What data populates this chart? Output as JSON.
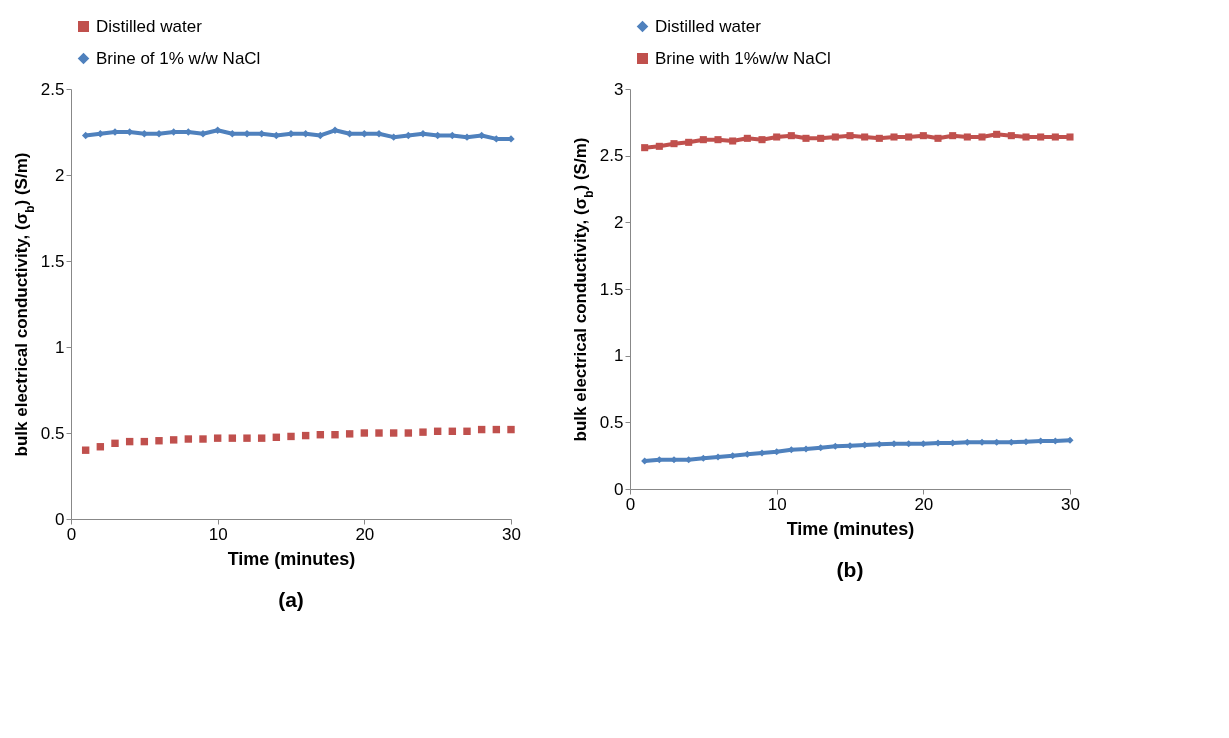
{
  "chart_data": [
    {
      "type": "line",
      "title": "(a)",
      "xlabel": "Time (minutes)",
      "ylabel": "bulk electrical conductivity, (σ$_{b}$) (S/m)",
      "legend": "top",
      "xlim": [
        0,
        30
      ],
      "xticks": [
        0,
        10,
        20,
        30
      ],
      "ylim": [
        0,
        2.5
      ],
      "yticks": [
        0,
        0.5,
        1,
        1.5,
        2,
        2.5
      ],
      "x": [
        1,
        2,
        3,
        4,
        5,
        6,
        7,
        8,
        9,
        10,
        11,
        12,
        13,
        14,
        15,
        16,
        17,
        18,
        19,
        20,
        21,
        22,
        23,
        24,
        25,
        26,
        27,
        28,
        29,
        30
      ],
      "series": [
        {
          "name": "Distilled water",
          "type": "scatter",
          "marker": "square",
          "color": "#c0504d",
          "values": [
            0.4,
            0.42,
            0.44,
            0.45,
            0.45,
            0.455,
            0.46,
            0.465,
            0.465,
            0.47,
            0.47,
            0.47,
            0.47,
            0.475,
            0.48,
            0.485,
            0.49,
            0.49,
            0.495,
            0.5,
            0.5,
            0.5,
            0.5,
            0.505,
            0.51,
            0.51,
            0.51,
            0.52,
            0.52,
            0.52
          ]
        },
        {
          "name": "Brine of 1% w/w NaCl",
          "type": "line",
          "marker": "diamond",
          "color": "#4f81bd",
          "values": [
            2.23,
            2.24,
            2.25,
            2.25,
            2.24,
            2.24,
            2.25,
            2.25,
            2.24,
            2.26,
            2.24,
            2.24,
            2.24,
            2.23,
            2.24,
            2.24,
            2.23,
            2.26,
            2.24,
            2.24,
            2.24,
            2.22,
            2.23,
            2.24,
            2.23,
            2.23,
            2.22,
            2.23,
            2.21,
            2.21
          ]
        }
      ]
    },
    {
      "type": "line",
      "title": "(b)",
      "xlabel": "Time (minutes)",
      "ylabel": "bulk electrical conductivity, (σ$_{b}$) (S/m)",
      "legend": "top",
      "xlim": [
        0,
        30
      ],
      "xticks": [
        0,
        10,
        20,
        30
      ],
      "ylim": [
        0,
        3
      ],
      "yticks": [
        0,
        0.5,
        1,
        1.5,
        2,
        2.5,
        3
      ],
      "x": [
        1,
        2,
        3,
        4,
        5,
        6,
        7,
        8,
        9,
        10,
        11,
        12,
        13,
        14,
        15,
        16,
        17,
        18,
        19,
        20,
        21,
        22,
        23,
        24,
        25,
        26,
        27,
        28,
        29,
        30
      ],
      "series": [
        {
          "name": "Distilled water",
          "type": "line",
          "marker": "diamond",
          "color": "#4f81bd",
          "values": [
            0.21,
            0.22,
            0.22,
            0.22,
            0.23,
            0.24,
            0.25,
            0.26,
            0.27,
            0.28,
            0.295,
            0.3,
            0.31,
            0.32,
            0.325,
            0.33,
            0.335,
            0.34,
            0.34,
            0.34,
            0.345,
            0.345,
            0.35,
            0.35,
            0.35,
            0.35,
            0.355,
            0.36,
            0.36,
            0.365
          ]
        },
        {
          "name": "Brine with 1%w/w NaCl",
          "type": "line",
          "marker": "square",
          "color": "#c0504d",
          "values": [
            2.56,
            2.57,
            2.59,
            2.6,
            2.62,
            2.62,
            2.61,
            2.63,
            2.62,
            2.64,
            2.65,
            2.63,
            2.63,
            2.64,
            2.65,
            2.64,
            2.63,
            2.64,
            2.64,
            2.65,
            2.63,
            2.65,
            2.64,
            2.64,
            2.66,
            2.65,
            2.64,
            2.64,
            2.64,
            2.64
          ]
        }
      ]
    }
  ]
}
